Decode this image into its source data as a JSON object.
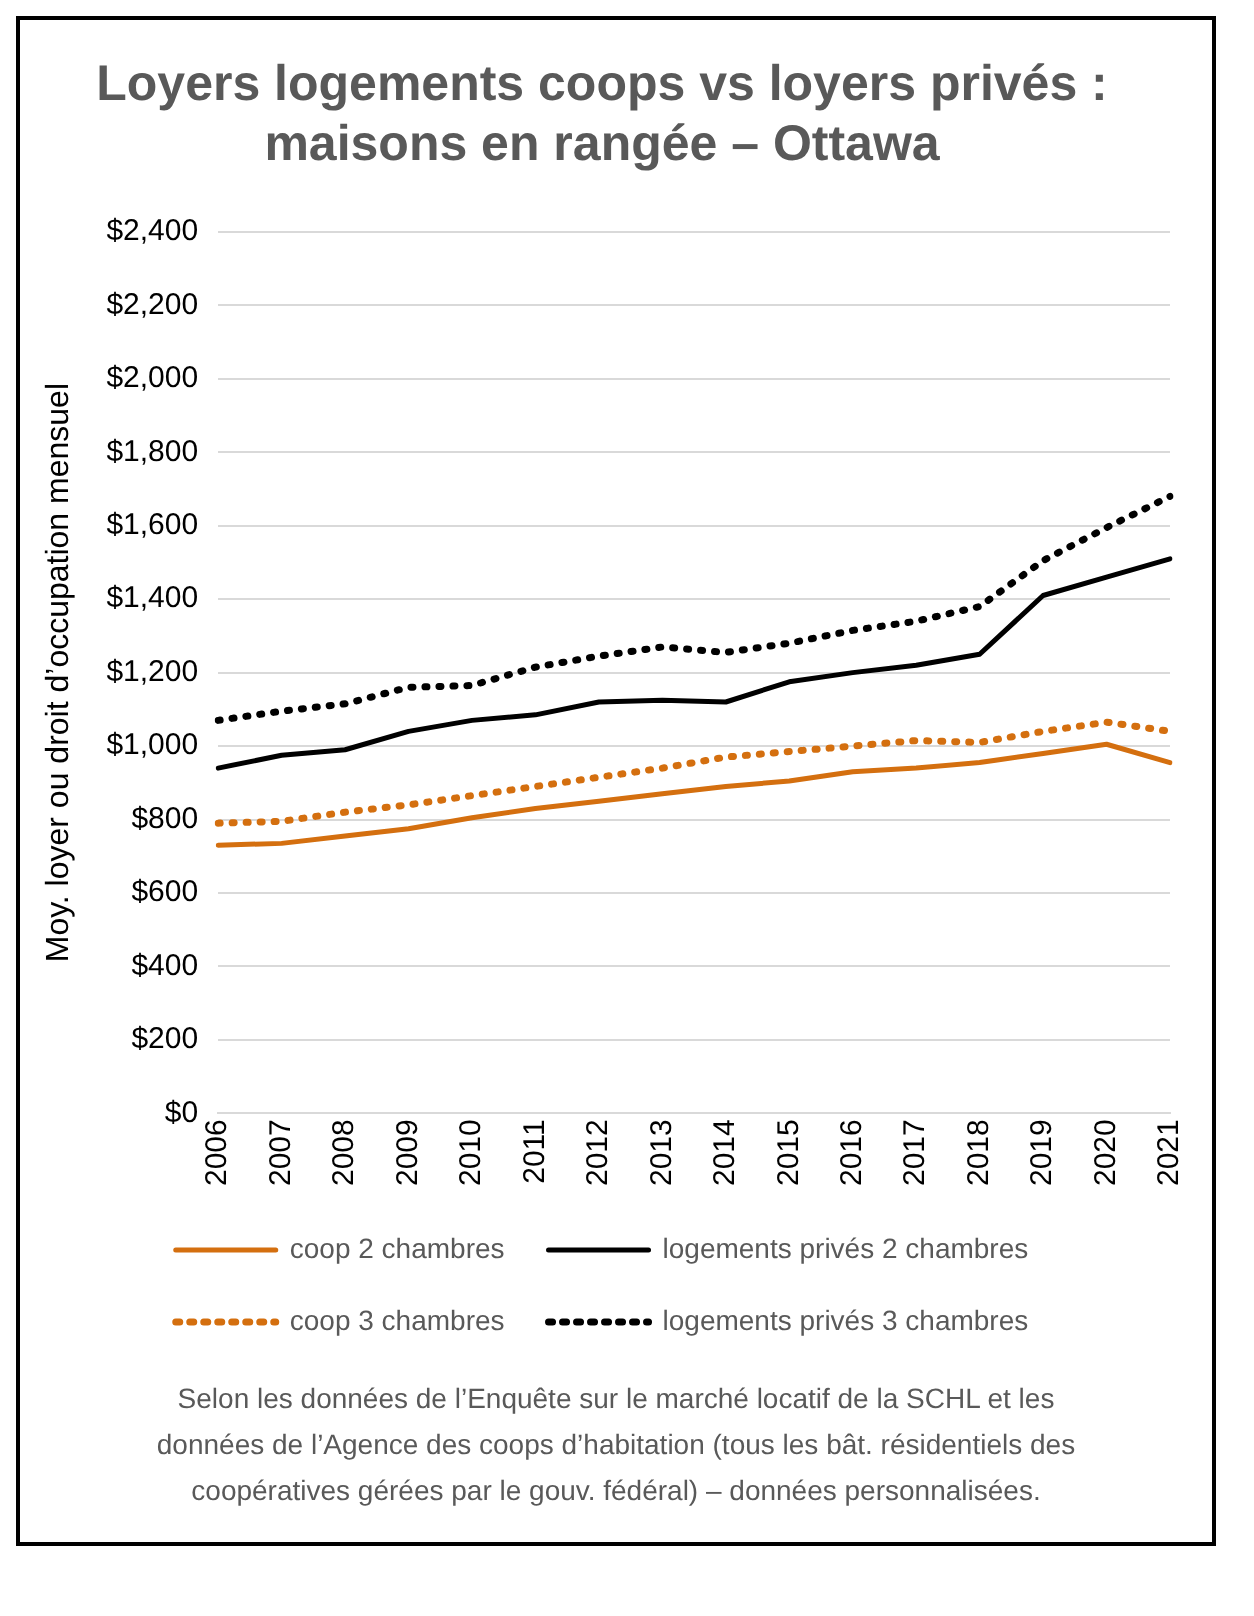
{
  "chart_data": {
    "type": "line",
    "title": "Loyers logements coops vs loyers privés :\nmaisons en rangée – Ottawa",
    "ylabel": "Moy. loyer ou droit d’occupation mensuel",
    "categories": [
      "2006",
      "2007",
      "2008",
      "2009",
      "2010",
      "2011",
      "2012",
      "2013",
      "2014",
      "2015",
      "2016",
      "2017",
      "2018",
      "2019",
      "2020",
      "2021"
    ],
    "series": [
      {
        "name": "coop 2 chambres",
        "color": "#d46f0f",
        "line_style": "solid",
        "values": [
          730,
          735,
          755,
          775,
          805,
          830,
          850,
          870,
          890,
          905,
          930,
          940,
          955,
          980,
          1005,
          955
        ]
      },
      {
        "name": "logements privés 2 chambres",
        "color": "#000000",
        "line_style": "solid",
        "values": [
          940,
          975,
          990,
          1040,
          1070,
          1085,
          1120,
          1125,
          1120,
          1175,
          1200,
          1220,
          1250,
          1410,
          1460,
          1510
        ]
      },
      {
        "name": "coop 3 chambres",
        "color": "#d46f0f",
        "line_style": "dotted",
        "values": [
          790,
          795,
          820,
          840,
          865,
          890,
          915,
          940,
          970,
          985,
          1000,
          1015,
          1010,
          1040,
          1065,
          1040
        ]
      },
      {
        "name": "logements privés 3 chambres",
        "color": "#000000",
        "line_style": "dotted",
        "values": [
          1070,
          1095,
          1115,
          1160,
          1165,
          1215,
          1245,
          1270,
          1255,
          1280,
          1315,
          1340,
          1380,
          1505,
          1595,
          1680
        ]
      }
    ],
    "ylim": [
      0,
      2400
    ],
    "yticks": [
      {
        "value": 0,
        "label": "$0"
      },
      {
        "value": 200,
        "label": "$200"
      },
      {
        "value": 400,
        "label": "$400"
      },
      {
        "value": 600,
        "label": "$600"
      },
      {
        "value": 800,
        "label": "$800"
      },
      {
        "value": 1000,
        "label": "$1,000"
      },
      {
        "value": 1200,
        "label": "$1,200"
      },
      {
        "value": 1400,
        "label": "$1,400"
      },
      {
        "value": 1600,
        "label": "$1,600"
      },
      {
        "value": 1800,
        "label": "$1,800"
      },
      {
        "value": 2000,
        "label": "$2,000"
      },
      {
        "value": 2200,
        "label": "$2,200"
      },
      {
        "value": 2400,
        "label": "$2,400"
      }
    ],
    "grid": "y",
    "legend": "bottom",
    "marker": "none",
    "annotations": [
      "Selon les données de l’Enquête sur le marché locatif de la SCHL et les données de l’Agence des coops d’habitation (tous les bât. résidentiels des coopératives gérées par le gouv. fédéral) – données personnalisées."
    ]
  }
}
